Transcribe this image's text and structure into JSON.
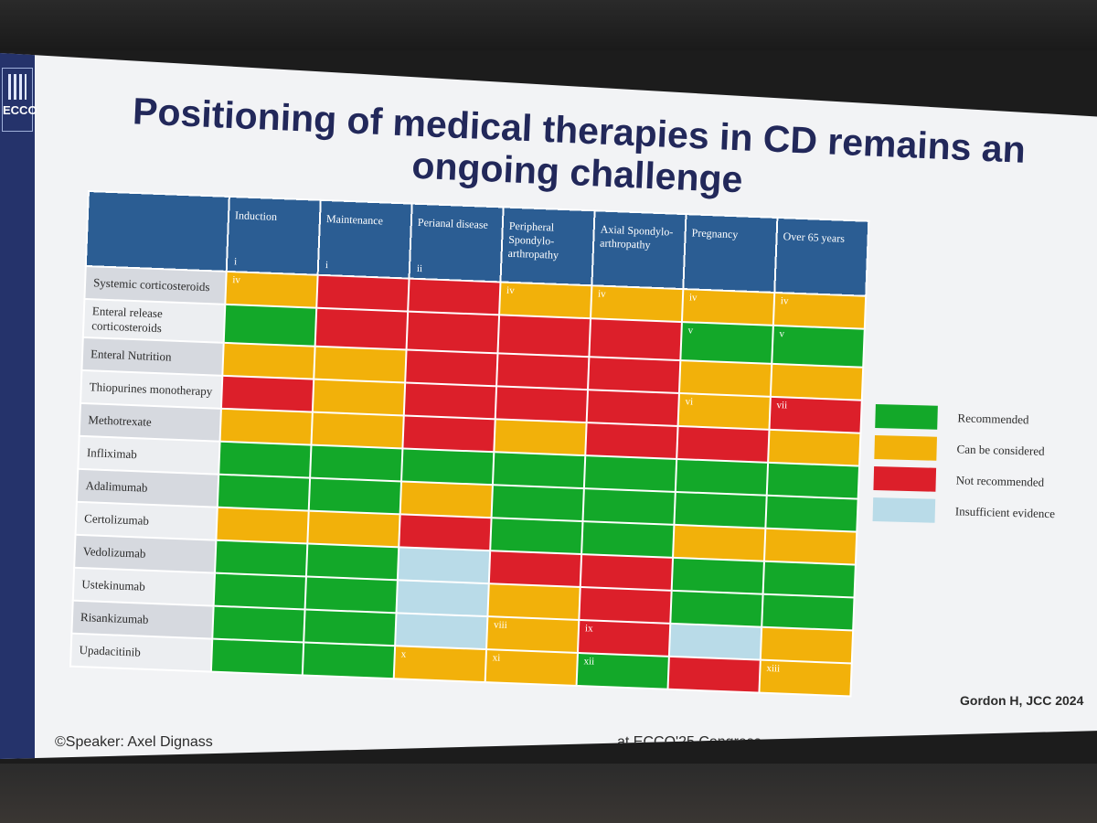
{
  "logo_text": "ECCO",
  "title": "Positioning of medical therapies in CD remains an ongoing challenge",
  "columns": [
    {
      "label": "Induction",
      "note": "i"
    },
    {
      "label": "Maintenance",
      "note": "i"
    },
    {
      "label": "Perianal disease",
      "note": "ii"
    },
    {
      "label": "Peripheral Spondylo-arthropathy",
      "note": ""
    },
    {
      "label": "Axial Spondylo-arthropathy",
      "note": ""
    },
    {
      "label": "Pregnancy",
      "note": ""
    },
    {
      "label": "Over 65 years",
      "note": ""
    }
  ],
  "rows": [
    {
      "label": "Systemic corticosteroids",
      "cells": [
        {
          "status": "can_be_considered",
          "note": "iv"
        },
        {
          "status": "not_recommended",
          "note": ""
        },
        {
          "status": "not_recommended",
          "note": ""
        },
        {
          "status": "can_be_considered",
          "note": "iv"
        },
        {
          "status": "can_be_considered",
          "note": "iv"
        },
        {
          "status": "can_be_considered",
          "note": "iv"
        },
        {
          "status": "can_be_considered",
          "note": "iv"
        }
      ]
    },
    {
      "label": "Enteral release corticosteroids",
      "cells": [
        {
          "status": "recommended",
          "note": ""
        },
        {
          "status": "not_recommended",
          "note": ""
        },
        {
          "status": "not_recommended",
          "note": ""
        },
        {
          "status": "not_recommended",
          "note": ""
        },
        {
          "status": "not_recommended",
          "note": ""
        },
        {
          "status": "recommended",
          "note": "v"
        },
        {
          "status": "recommended",
          "note": "v"
        }
      ]
    },
    {
      "label": "Enteral Nutrition",
      "cells": [
        {
          "status": "can_be_considered",
          "note": ""
        },
        {
          "status": "can_be_considered",
          "note": ""
        },
        {
          "status": "not_recommended",
          "note": ""
        },
        {
          "status": "not_recommended",
          "note": ""
        },
        {
          "status": "not_recommended",
          "note": ""
        },
        {
          "status": "can_be_considered",
          "note": ""
        },
        {
          "status": "can_be_considered",
          "note": ""
        }
      ]
    },
    {
      "label": "Thiopurines monotherapy",
      "cells": [
        {
          "status": "not_recommended",
          "note": ""
        },
        {
          "status": "can_be_considered",
          "note": ""
        },
        {
          "status": "not_recommended",
          "note": ""
        },
        {
          "status": "not_recommended",
          "note": ""
        },
        {
          "status": "not_recommended",
          "note": ""
        },
        {
          "status": "can_be_considered",
          "note": "vi"
        },
        {
          "status": "not_recommended",
          "note": "vii"
        }
      ]
    },
    {
      "label": "Methotrexate",
      "cells": [
        {
          "status": "can_be_considered",
          "note": ""
        },
        {
          "status": "can_be_considered",
          "note": ""
        },
        {
          "status": "not_recommended",
          "note": ""
        },
        {
          "status": "can_be_considered",
          "note": ""
        },
        {
          "status": "not_recommended",
          "note": ""
        },
        {
          "status": "not_recommended",
          "note": ""
        },
        {
          "status": "can_be_considered",
          "note": ""
        }
      ]
    },
    {
      "label": "Infliximab",
      "cells": [
        {
          "status": "recommended",
          "note": ""
        },
        {
          "status": "recommended",
          "note": ""
        },
        {
          "status": "recommended",
          "note": ""
        },
        {
          "status": "recommended",
          "note": ""
        },
        {
          "status": "recommended",
          "note": ""
        },
        {
          "status": "recommended",
          "note": ""
        },
        {
          "status": "recommended",
          "note": ""
        }
      ]
    },
    {
      "label": "Adalimumab",
      "cells": [
        {
          "status": "recommended",
          "note": ""
        },
        {
          "status": "recommended",
          "note": ""
        },
        {
          "status": "can_be_considered",
          "note": ""
        },
        {
          "status": "recommended",
          "note": ""
        },
        {
          "status": "recommended",
          "note": ""
        },
        {
          "status": "recommended",
          "note": ""
        },
        {
          "status": "recommended",
          "note": ""
        }
      ]
    },
    {
      "label": "Certolizumab",
      "cells": [
        {
          "status": "can_be_considered",
          "note": ""
        },
        {
          "status": "can_be_considered",
          "note": ""
        },
        {
          "status": "not_recommended",
          "note": ""
        },
        {
          "status": "recommended",
          "note": ""
        },
        {
          "status": "recommended",
          "note": ""
        },
        {
          "status": "can_be_considered",
          "note": ""
        },
        {
          "status": "can_be_considered",
          "note": ""
        }
      ]
    },
    {
      "label": "Vedolizumab",
      "cells": [
        {
          "status": "recommended",
          "note": ""
        },
        {
          "status": "recommended",
          "note": ""
        },
        {
          "status": "insufficient_evidence",
          "note": ""
        },
        {
          "status": "not_recommended",
          "note": ""
        },
        {
          "status": "not_recommended",
          "note": ""
        },
        {
          "status": "recommended",
          "note": ""
        },
        {
          "status": "recommended",
          "note": ""
        }
      ]
    },
    {
      "label": "Ustekinumab",
      "cells": [
        {
          "status": "recommended",
          "note": ""
        },
        {
          "status": "recommended",
          "note": ""
        },
        {
          "status": "insufficient_evidence",
          "note": ""
        },
        {
          "status": "can_be_considered",
          "note": ""
        },
        {
          "status": "not_recommended",
          "note": ""
        },
        {
          "status": "recommended",
          "note": ""
        },
        {
          "status": "recommended",
          "note": ""
        }
      ]
    },
    {
      "label": "Risankizumab",
      "cells": [
        {
          "status": "recommended",
          "note": ""
        },
        {
          "status": "recommended",
          "note": ""
        },
        {
          "status": "insufficient_evidence",
          "note": ""
        },
        {
          "status": "can_be_considered",
          "note": "viii"
        },
        {
          "status": "not_recommended",
          "note": "ix"
        },
        {
          "status": "insufficient_evidence",
          "note": ""
        },
        {
          "status": "can_be_considered",
          "note": ""
        }
      ]
    },
    {
      "label": "Upadacitinib",
      "cells": [
        {
          "status": "recommended",
          "note": ""
        },
        {
          "status": "recommended",
          "note": ""
        },
        {
          "status": "can_be_considered",
          "note": "x"
        },
        {
          "status": "can_be_considered",
          "note": "xi"
        },
        {
          "status": "recommended",
          "note": "xii"
        },
        {
          "status": "not_recommended",
          "note": ""
        },
        {
          "status": "can_be_considered",
          "note": "xiii"
        }
      ]
    }
  ],
  "legend": [
    {
      "status": "recommended",
      "label": "Recommended",
      "color": "#13a829"
    },
    {
      "status": "can_be_considered",
      "label": "Can be considered",
      "color": "#f2b10a"
    },
    {
      "status": "not_recommended",
      "label": "Not recommended",
      "color": "#dc1f2a"
    },
    {
      "status": "insufficient_evidence",
      "label": "Insufficient evidence",
      "color": "#b9dbe8"
    }
  ],
  "citation": "Gordon H, JCC 2024",
  "speaker": "©Speaker: Axel Dignass",
  "congress": "at ECCO'25 Congress"
}
